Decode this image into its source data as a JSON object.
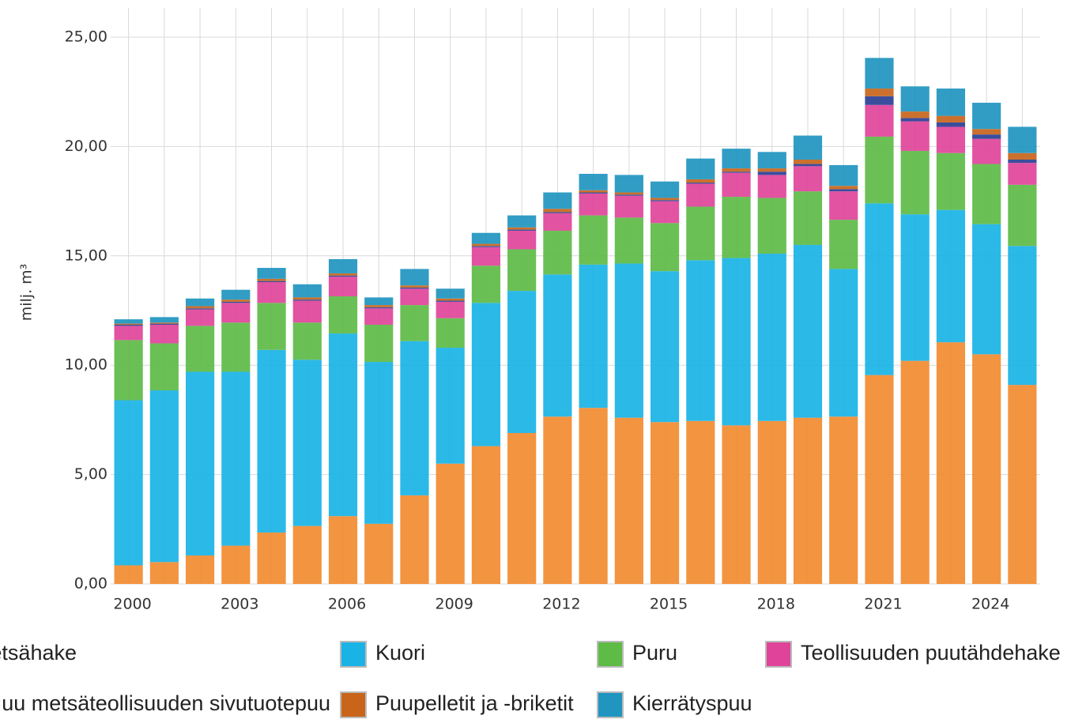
{
  "chart_data": {
    "type": "stacked_bar",
    "y_label": "milj. m³",
    "categories": [
      "2000",
      null,
      null,
      "2003",
      null,
      null,
      "2006",
      null,
      null,
      "2009",
      null,
      null,
      "2012",
      null,
      null,
      "2015",
      null,
      null,
      "2018",
      null,
      null,
      "2021",
      null,
      null,
      "2024",
      null
    ],
    "series": [
      {
        "name": "Metsähake",
        "color": "#f28b30",
        "values": [
          0.85,
          1.0,
          1.3,
          1.75,
          2.35,
          2.65,
          3.1,
          2.75,
          4.05,
          5.5,
          6.3,
          6.9,
          7.65,
          8.05,
          7.6,
          7.4,
          7.45,
          7.25,
          7.45,
          7.6,
          7.65,
          9.55,
          10.2,
          11.05,
          10.5,
          9.1
        ]
      },
      {
        "name": "Kuori",
        "color": "#19b3e6",
        "values": [
          7.55,
          7.85,
          8.4,
          7.95,
          8.35,
          7.6,
          8.35,
          7.4,
          7.05,
          5.3,
          6.55,
          6.5,
          6.5,
          6.55,
          7.05,
          6.9,
          7.35,
          7.65,
          7.65,
          7.9,
          6.75,
          7.85,
          6.7,
          6.05,
          5.95,
          6.35
        ]
      },
      {
        "name": "Puru",
        "color": "#5dbb46",
        "values": [
          2.75,
          2.15,
          2.1,
          2.25,
          2.15,
          1.7,
          1.7,
          1.7,
          1.65,
          1.35,
          1.7,
          1.9,
          2.0,
          2.25,
          2.1,
          2.2,
          2.45,
          2.8,
          2.55,
          2.45,
          2.25,
          3.05,
          2.9,
          2.6,
          2.75,
          2.8
        ]
      },
      {
        "name": "Teollisuuden puutähdehake",
        "color": "#e0449a",
        "values": [
          0.65,
          0.85,
          0.75,
          0.9,
          0.95,
          1.0,
          0.9,
          0.75,
          0.75,
          0.75,
          0.85,
          0.85,
          0.8,
          1.0,
          1.0,
          1.0,
          1.05,
          1.1,
          1.05,
          1.15,
          1.3,
          1.45,
          1.35,
          1.2,
          1.15,
          1.0
        ]
      },
      {
        "name": "Muu metsäteollisuuden sivutuotepuu",
        "color": "#2a3f96",
        "values": [
          0.05,
          0.05,
          0.05,
          0.05,
          0.05,
          0.05,
          0.05,
          0.05,
          0.05,
          0.05,
          0.05,
          0.05,
          0.05,
          0.05,
          0.05,
          0.05,
          0.05,
          0.05,
          0.15,
          0.1,
          0.1,
          0.4,
          0.15,
          0.2,
          0.2,
          0.15
        ]
      },
      {
        "name": "Puupelletit ja -briketit",
        "color": "#c8651b",
        "values": [
          0.05,
          0.05,
          0.1,
          0.1,
          0.1,
          0.1,
          0.1,
          0.1,
          0.1,
          0.1,
          0.1,
          0.1,
          0.15,
          0.1,
          0.1,
          0.1,
          0.15,
          0.15,
          0.15,
          0.2,
          0.15,
          0.35,
          0.3,
          0.3,
          0.25,
          0.3
        ]
      },
      {
        "name": "Kierrätyspuu",
        "color": "#1f95c0",
        "values": [
          0.2,
          0.25,
          0.35,
          0.45,
          0.5,
          0.6,
          0.65,
          0.35,
          0.75,
          0.45,
          0.5,
          0.55,
          0.75,
          0.75,
          0.8,
          0.75,
          0.95,
          0.9,
          0.75,
          1.1,
          0.95,
          1.4,
          1.15,
          1.25,
          1.2,
          1.2
        ]
      }
    ],
    "ylim": [
      0,
      25
    ],
    "yticks": [
      {
        "value": 0,
        "label": "0,00"
      },
      {
        "value": 5,
        "label": "5,00"
      },
      {
        "value": 10,
        "label": "10,00"
      },
      {
        "value": 15,
        "label": "15,00"
      },
      {
        "value": 20,
        "label": "20,00"
      },
      {
        "value": 25,
        "label": "25,00"
      }
    ],
    "grid": true
  }
}
